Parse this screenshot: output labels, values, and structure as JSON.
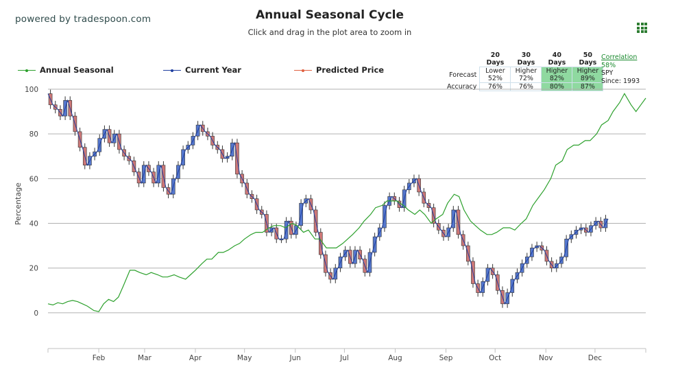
{
  "header": {
    "powered_by": "powered by tradespoon.com",
    "title": "Annual Seasonal Cycle",
    "subtitle": "Click and drag in the plot area to zoom in",
    "menu_icon": "grid-menu-icon"
  },
  "legend": [
    {
      "label": "Annual Seasonal",
      "color": "#2ca02c"
    },
    {
      "label": "Current Year",
      "color": "#1f3fa0"
    },
    {
      "label": "Predicted Price",
      "color": "#e06040"
    }
  ],
  "forecast_table": {
    "columns": [
      "20 Days",
      "30 Days",
      "40 Days",
      "50 Days"
    ],
    "forecast_label": "Forecast",
    "accuracy_label": "Accuracy",
    "forecast": [
      {
        "direction": "Lower",
        "pct": "52%",
        "highlight": false
      },
      {
        "direction": "Higher",
        "pct": "72%",
        "highlight": false
      },
      {
        "direction": "Higher",
        "pct": "82%",
        "highlight": true
      },
      {
        "direction": "Higher",
        "pct": "89%",
        "highlight": true
      }
    ],
    "accuracy": [
      {
        "pct": "76%",
        "highlight": false
      },
      {
        "pct": "76%",
        "highlight": false
      },
      {
        "pct": "80%",
        "highlight": true
      },
      {
        "pct": "87%",
        "highlight": true
      }
    ]
  },
  "correlation": {
    "label": "Correlation",
    "value": "58%",
    "symbol": "SPY",
    "since": "Since: 1993"
  },
  "chart_data": {
    "type": "line",
    "title": "Annual Seasonal Cycle",
    "ylabel": "Percentage",
    "xlabel": "",
    "ylim": [
      -16,
      100
    ],
    "yticks": [
      0,
      20,
      40,
      60,
      80,
      100
    ],
    "months": [
      "Feb",
      "Mar",
      "Apr",
      "May",
      "Jun",
      "Jul",
      "Aug",
      "Sep",
      "Oct",
      "Nov",
      "Dec"
    ],
    "grid": true,
    "legend_position": "top",
    "seasonal_color": "#2ca02c",
    "candle_up_color": "#5577cc",
    "candle_down_color": "#cc7777",
    "annual_seasonal": {
      "x": [
        0,
        3,
        6,
        9,
        12,
        15,
        18,
        21,
        24,
        28,
        31,
        34,
        37,
        40,
        43,
        46,
        50,
        53,
        56,
        60,
        63,
        67,
        70,
        73,
        77,
        80,
        84,
        87,
        90,
        94,
        97,
        100,
        104,
        107,
        110,
        114,
        117,
        120,
        124,
        127,
        131,
        135,
        138,
        142,
        145,
        149,
        152,
        156,
        159,
        163,
        166,
        170,
        173,
        176,
        180,
        183,
        186,
        190,
        193,
        197,
        200,
        204,
        207,
        210,
        213,
        217,
        220,
        224,
        227,
        230,
        234,
        237,
        241,
        244,
        248,
        251,
        254,
        258,
        261,
        264,
        268,
        271,
        274,
        278,
        282,
        285,
        289,
        292,
        296,
        300,
        303,
        307,
        310,
        314,
        317,
        321,
        324,
        328,
        331,
        335,
        338,
        342,
        345,
        349,
        352,
        356,
        359,
        362,
        365
      ],
      "y": [
        4,
        3.5,
        4.5,
        4,
        5,
        5.5,
        5,
        4,
        3,
        1,
        0.5,
        4,
        6,
        5,
        7,
        12,
        19,
        19,
        18,
        17,
        18,
        17,
        16,
        16,
        17,
        16,
        15,
        17,
        19,
        22,
        24,
        24,
        27,
        27,
        28,
        30,
        31,
        33,
        35,
        36,
        36,
        38,
        39,
        39,
        38,
        40,
        39,
        36,
        37,
        33,
        33,
        29,
        29,
        29,
        31,
        33,
        35,
        38,
        41,
        44,
        47,
        48,
        50,
        50,
        50,
        48,
        46,
        44,
        46,
        44,
        40,
        42,
        44,
        49,
        53,
        52,
        46,
        41,
        39,
        37,
        35,
        35,
        36,
        38,
        38,
        37,
        40,
        42,
        48,
        52,
        55,
        60,
        66,
        68,
        73,
        75,
        75,
        77,
        77,
        80,
        84,
        86,
        90,
        94,
        98,
        93,
        90,
        93,
        96
      ]
    },
    "current_year": {
      "x": [
        0,
        3,
        6,
        9,
        12,
        15,
        18,
        21,
        24,
        27,
        30,
        33,
        36,
        39,
        42,
        45,
        48,
        51,
        54,
        57,
        60,
        63,
        66,
        69,
        72,
        75,
        78,
        81,
        84,
        87,
        90,
        93,
        96,
        99,
        102,
        105,
        108,
        111,
        114,
        117,
        120,
        123,
        126,
        129,
        132,
        135,
        138,
        141,
        144,
        147,
        150,
        153,
        156,
        159,
        162,
        165,
        168,
        171,
        174,
        177,
        180,
        183,
        186,
        189,
        192,
        195,
        198,
        201,
        204,
        207,
        210,
        213,
        216,
        219,
        222,
        225,
        228,
        231,
        234,
        237,
        240,
        243,
        246,
        249,
        252,
        255,
        258,
        261,
        264,
        267,
        270,
        273,
        276,
        279,
        282,
        285,
        288
      ],
      "y": [
        98,
        93,
        91,
        88,
        95,
        88,
        81,
        74,
        66,
        70,
        72,
        78,
        82,
        76,
        80,
        73,
        70,
        68,
        63,
        58,
        66,
        63,
        58,
        66,
        56,
        53,
        60,
        66,
        73,
        75,
        79,
        84,
        81,
        79,
        75,
        73,
        69,
        70,
        76,
        62,
        58,
        53,
        51,
        46,
        44,
        36,
        38,
        33,
        33,
        41,
        35,
        39,
        49,
        51,
        46,
        36,
        26,
        18,
        15,
        20,
        25,
        28,
        22,
        28,
        24,
        18,
        27,
        34,
        38,
        48,
        52,
        50,
        47,
        55,
        58,
        60,
        54,
        49,
        47,
        40,
        37,
        34,
        38,
        46,
        35,
        30,
        23,
        13,
        9,
        14,
        20,
        17,
        10,
        4,
        9,
        15,
        18
      ]
    },
    "current_year_late": {
      "x": [
        288,
        291,
        294,
        297,
        300,
        303,
        306,
        309,
        312,
        315,
        318,
        321,
        324,
        327,
        330,
        333,
        336,
        339,
        342
      ],
      "y": [
        18,
        22,
        25,
        29,
        30,
        28,
        23,
        20,
        22,
        25,
        33,
        35,
        37,
        38,
        36,
        39,
        41,
        38,
        42
      ]
    }
  }
}
